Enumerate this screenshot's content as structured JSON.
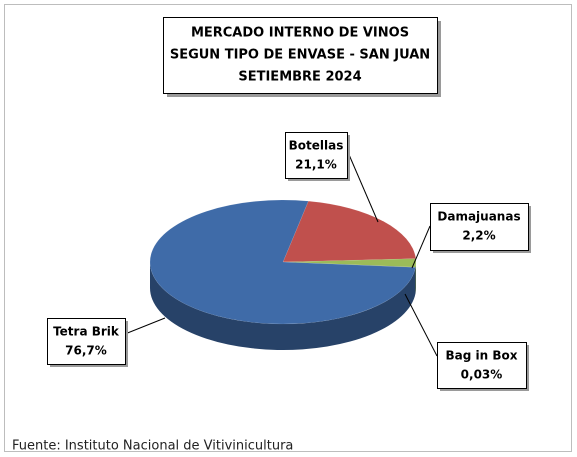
{
  "chart_data": {
    "type": "pie",
    "title": [
      "MERCADO INTERNO DE VINOS",
      "SEGUN TIPO DE ENVASE - SAN JUAN",
      "SETIEMBRE 2024"
    ],
    "categories": [
      "Botellas",
      "Damajuanas",
      "Bag in Box",
      "Tetra Brik"
    ],
    "values": [
      21.1,
      2.2,
      0.03,
      76.7
    ],
    "value_labels": [
      "21,1%",
      "2,2%",
      "0,03%",
      "76,7%"
    ],
    "colors": [
      "#c0504d",
      "#9bbb59",
      "#6b6a2a",
      "#3f6ba8"
    ],
    "source": "Fuente: Instituto Nacional de Vitivinicultura"
  }
}
